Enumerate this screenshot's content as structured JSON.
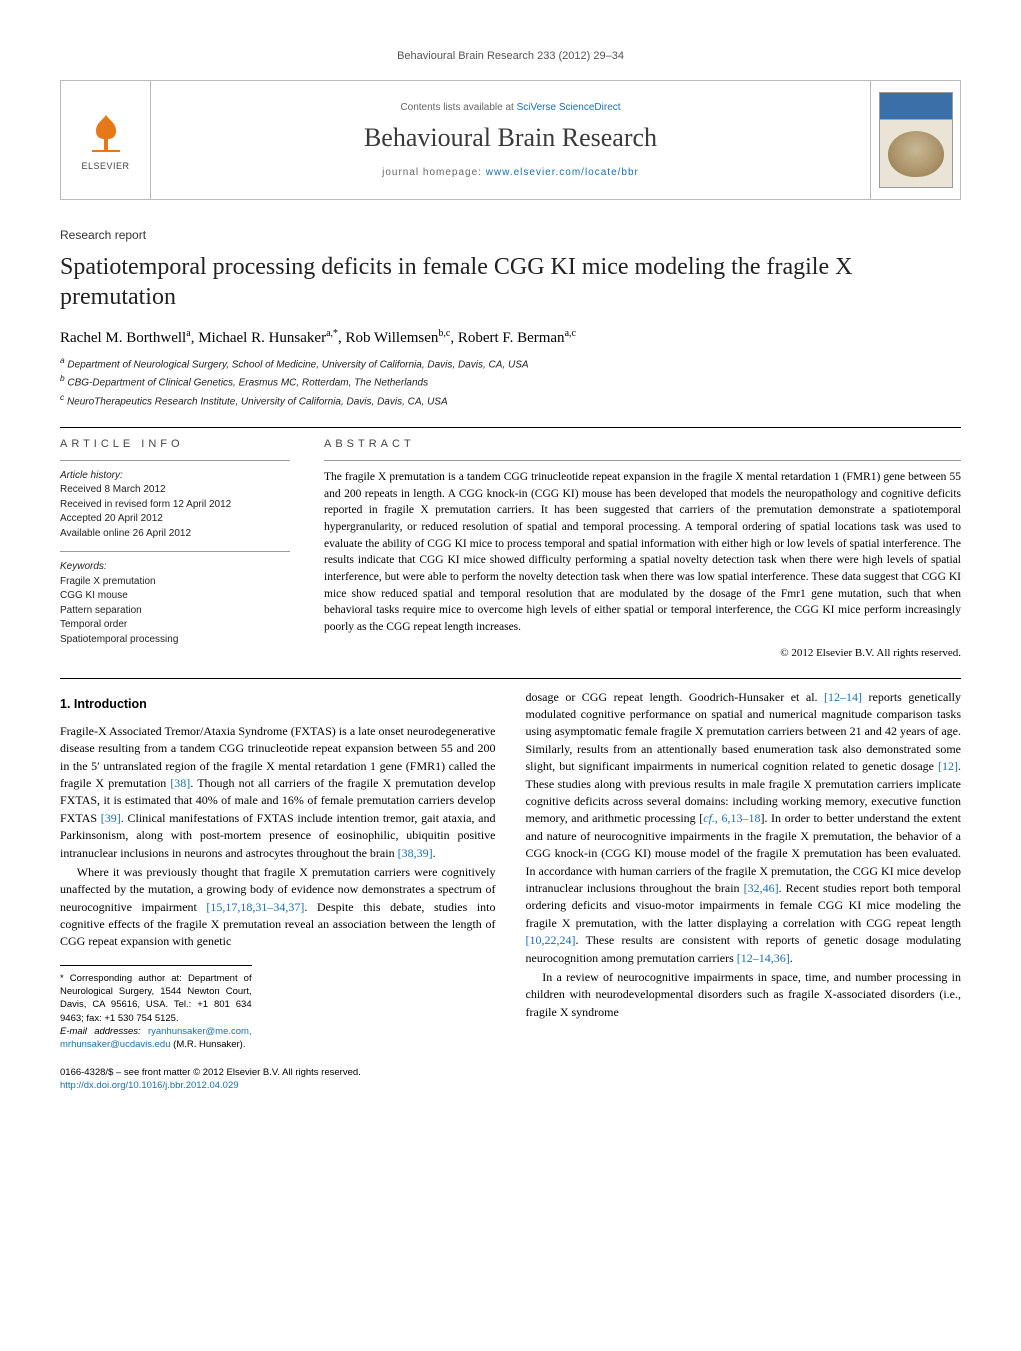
{
  "running_head": "Behavioural Brain Research 233 (2012) 29–34",
  "banner": {
    "publisher": "ELSEVIER",
    "availability_prefix": "Contents lists available at ",
    "availability_link": "SciVerse ScienceDirect",
    "journal_name": "Behavioural Brain Research",
    "homepage_prefix": "journal homepage: ",
    "homepage_link": "www.elsevier.com/locate/bbr",
    "cover_label": "Behavioural Brain Research"
  },
  "article": {
    "doc_type": "Research report",
    "title": "Spatiotemporal processing deficits in female CGG KI mice modeling the fragile X premutation",
    "authors_html": "Rachel M. Borthwell<sup>a</sup>, Michael R. Hunsaker<sup>a,*</sup>, Rob Willemsen<sup>b,c</sup>, Robert F. Berman<sup>a,c</sup>",
    "affiliations": [
      "a Department of Neurological Surgery, School of Medicine, University of California, Davis, Davis, CA, USA",
      "b CBG-Department of Clinical Genetics, Erasmus MC, Rotterdam, The Netherlands",
      "c NeuroTherapeutics Research Institute, University of California, Davis, Davis, CA, USA"
    ]
  },
  "info": {
    "heading_left": "ARTICLE INFO",
    "heading_right": "ABSTRACT",
    "history_label": "Article history:",
    "history": [
      "Received 8 March 2012",
      "Received in revised form 12 April 2012",
      "Accepted 20 April 2012",
      "Available online 26 April 2012"
    ],
    "keywords_label": "Keywords:",
    "keywords": [
      "Fragile X premutation",
      "CGG KI mouse",
      "Pattern separation",
      "Temporal order",
      "Spatiotemporal processing"
    ],
    "abstract": "The fragile X premutation is a tandem CGG trinucleotide repeat expansion in the fragile X mental retardation 1 (FMR1) gene between 55 and 200 repeats in length. A CGG knock-in (CGG KI) mouse has been developed that models the neuropathology and cognitive deficits reported in fragile X premutation carriers. It has been suggested that carriers of the premutation demonstrate a spatiotemporal hypergranularity, or reduced resolution of spatial and temporal processing. A temporal ordering of spatial locations task was used to evaluate the ability of CGG KI mice to process temporal and spatial information with either high or low levels of spatial interference. The results indicate that CGG KI mice showed difficulty performing a spatial novelty detection task when there were high levels of spatial interference, but were able to perform the novelty detection task when there was low spatial interference. These data suggest that CGG KI mice show reduced spatial and temporal resolution that are modulated by the dosage of the Fmr1 gene mutation, such that when behavioral tasks require mice to overcome high levels of either spatial or temporal interference, the CGG KI mice perform increasingly poorly as the CGG repeat length increases.",
    "copyright": "© 2012 Elsevier B.V. All rights reserved."
  },
  "body": {
    "section_heading": "1. Introduction",
    "p1": "Fragile-X Associated Tremor/Ataxia Syndrome (FXTAS) is a late onset neurodegenerative disease resulting from a tandem CGG trinucleotide repeat expansion between 55 and 200 in the 5′ untranslated region of the fragile X mental retardation 1 gene (FMR1) called the fragile X premutation [38]. Though not all carriers of the fragile X premutation develop FXTAS, it is estimated that 40% of male and 16% of female premutation carriers develop FXTAS [39]. Clinical manifestations of FXTAS include intention tremor, gait ataxia, and Parkinsonism, along with post-mortem presence of eosinophilic, ubiquitin positive intranuclear inclusions in neurons and astrocytes throughout the brain [38,39].",
    "p2": "Where it was previously thought that fragile X premutation carriers were cognitively unaffected by the mutation, a growing body of evidence now demonstrates a spectrum of neurocognitive impairment [15,17,18,31–34,37]. Despite this debate, studies into cognitive effects of the fragile X premutation reveal an association between the length of CGG repeat expansion with genetic",
    "p3": "dosage or CGG repeat length. Goodrich-Hunsaker et al. [12–14] reports genetically modulated cognitive performance on spatial and numerical magnitude comparison tasks using asymptomatic female fragile X premutation carriers between 21 and 42 years of age. Similarly, results from an attentionally based enumeration task also demonstrated some slight, but significant impairments in numerical cognition related to genetic dosage [12]. These studies along with previous results in male fragile X premutation carriers implicate cognitive deficits across several domains: including working memory, executive function memory, and arithmetic processing [cf., 6,13–18]. In order to better understand the extent and nature of neurocognitive impairments in the fragile X premutation, the behavior of a CGG knock-in (CGG KI) mouse model of the fragile X premutation has been evaluated. In accordance with human carriers of the fragile X premutation, the CGG KI mice develop intranuclear inclusions throughout the brain [32,46]. Recent studies report both temporal ordering deficits and visuo-motor impairments in female CGG KI mice modeling the fragile X premutation, with the latter displaying a correlation with CGG repeat length [10,22,24]. These results are consistent with reports of genetic dosage modulating neurocognition among premutation carriers [12–14,36].",
    "p4": "In a review of neurocognitive impairments in space, time, and number processing in children with neurodevelopmental disorders such as fragile X-associated disorders (i.e., fragile X syndrome"
  },
  "footnotes": {
    "corr": "* Corresponding author at: Department of Neurological Surgery, 1544 Newton Court, Davis, CA 95616, USA. Tel.: +1 801 634 9463; fax: +1 530 754 5125.",
    "email_label": "E-mail addresses: ",
    "emails": "ryanhunsaker@me.com, mrhunsaker@ucdavis.edu",
    "email_person": "(M.R. Hunsaker)."
  },
  "bottom": {
    "line1": "0166-4328/$ – see front matter © 2012 Elsevier B.V. All rights reserved.",
    "doi": "http://dx.doi.org/10.1016/j.bbr.2012.04.029"
  },
  "colors": {
    "link": "#1a6fb0",
    "text": "#000000",
    "muted": "#555555",
    "rule": "#000000"
  }
}
